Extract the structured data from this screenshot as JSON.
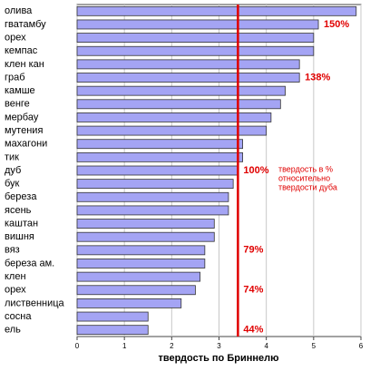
{
  "chart_data": {
    "type": "barh",
    "xlabel": "твердость по Бриннелю",
    "categories": [
      "олива",
      "гватамбу",
      "орех",
      "кемпас",
      "клен кан",
      "граб",
      "камше",
      "венге",
      "мербау",
      "мутения",
      "махагони",
      "тик",
      "дуб",
      "бук",
      "береза",
      "ясень",
      "каштан",
      "вишня",
      "вяз",
      "береза ам.",
      "клен",
      "орех",
      "лиственница",
      "сосна",
      "ель"
    ],
    "values": [
      5.9,
      5.1,
      5.0,
      5.0,
      4.7,
      4.7,
      4.4,
      4.3,
      4.1,
      4.0,
      3.5,
      3.5,
      3.4,
      3.3,
      3.2,
      3.2,
      2.9,
      2.9,
      2.7,
      2.7,
      2.6,
      2.5,
      2.2,
      1.5,
      1.5
    ],
    "value_labels": [
      null,
      "150%",
      null,
      null,
      null,
      "138%",
      null,
      null,
      null,
      null,
      null,
      null,
      "100%",
      null,
      null,
      null,
      null,
      null,
      "79%",
      null,
      null,
      "74%",
      null,
      null,
      "44%"
    ],
    "color": "#a4a4f4",
    "xlim": [
      0,
      6
    ],
    "xticks": [
      0,
      1,
      2,
      3,
      4,
      5,
      6
    ],
    "grid": true,
    "reference_line": {
      "value": 3.4,
      "color": "#e00000"
    },
    "note": [
      "твердость в %",
      "относительно",
      "твердости дуба"
    ]
  }
}
